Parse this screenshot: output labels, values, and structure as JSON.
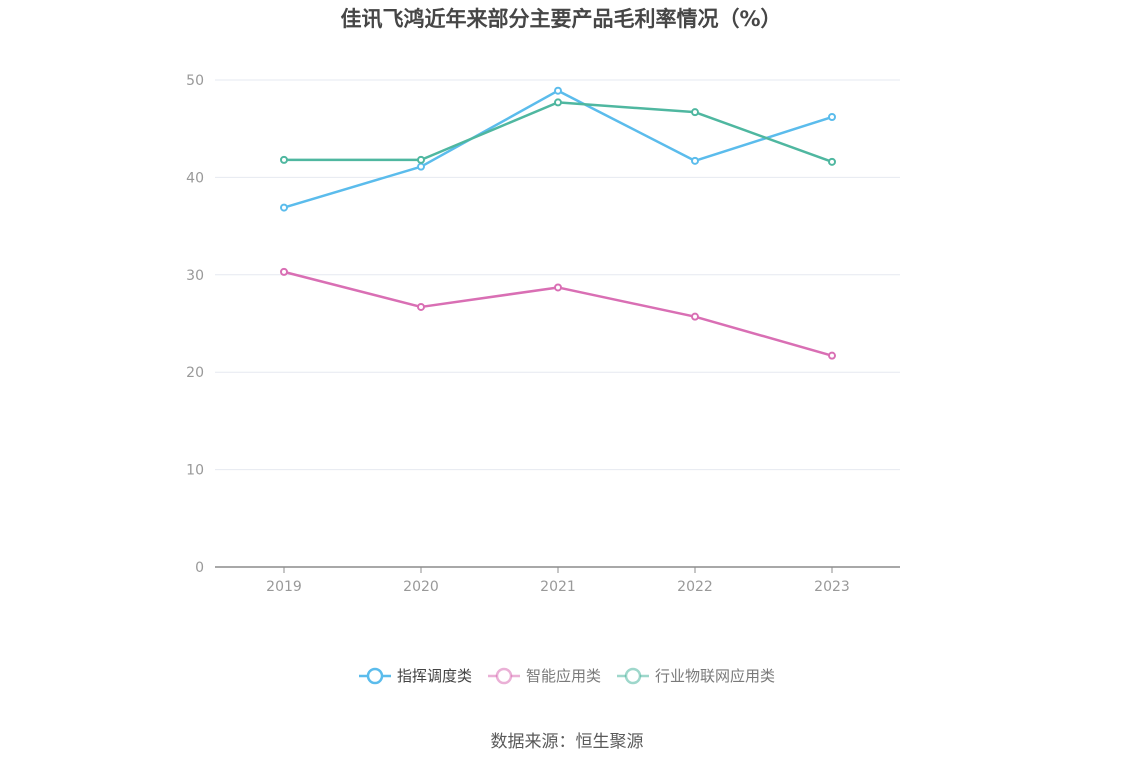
{
  "chart_data": {
    "type": "line",
    "title": "佳讯飞鸿近年来部分主要产品毛利率情况（%）",
    "categories": [
      "2019",
      "2020",
      "2021",
      "2022",
      "2023"
    ],
    "ylim": [
      0,
      50
    ],
    "yticks": [
      0,
      10,
      20,
      30,
      40,
      50
    ],
    "grid": true,
    "legend_position": "bottom-center",
    "series": [
      {
        "name": "指挥调度类",
        "color": "#5bbcec",
        "values": [
          36.9,
          41.1,
          48.9,
          41.7,
          46.2
        ]
      },
      {
        "name": "智能应用类",
        "color": "#d96fb4",
        "values": [
          30.3,
          26.7,
          28.7,
          25.7,
          21.7
        ]
      },
      {
        "name": "行业物联网应用类",
        "color": "#4fb7a0",
        "values": [
          41.8,
          41.8,
          47.7,
          46.7,
          41.6
        ]
      }
    ],
    "source": "数据来源：恒生聚源"
  }
}
